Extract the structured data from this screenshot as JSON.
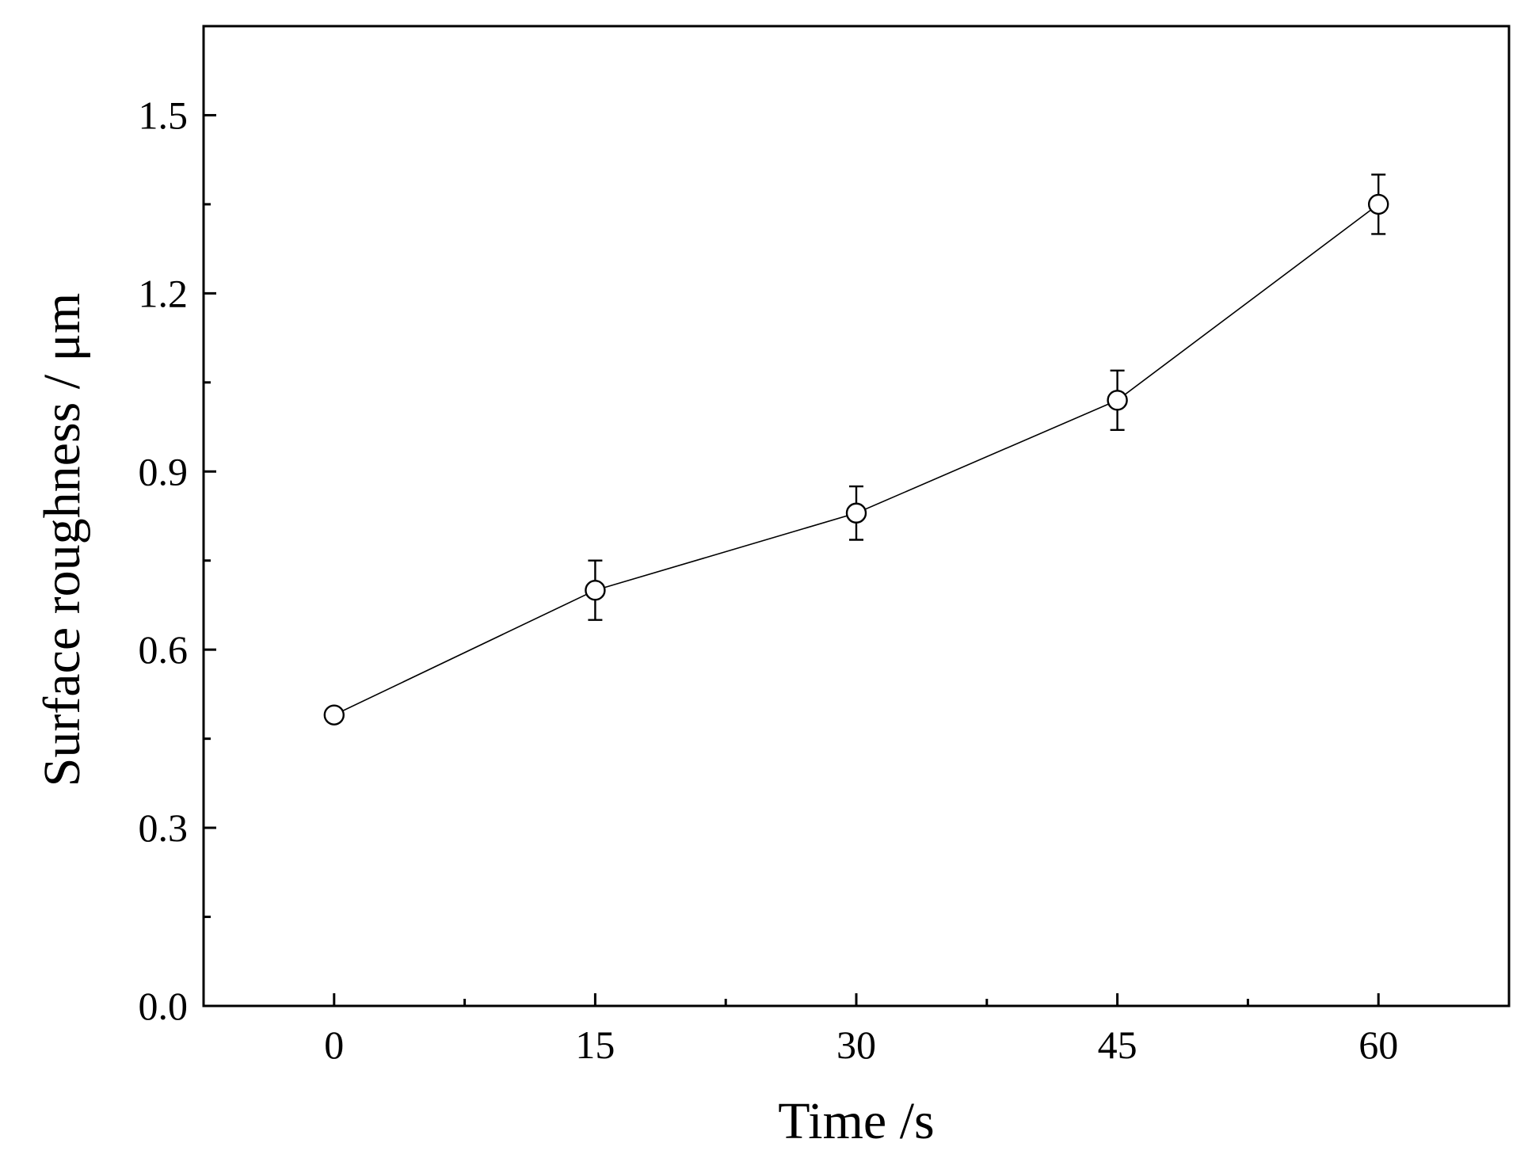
{
  "chart_data": {
    "type": "line",
    "title": "",
    "xlabel": "Time /s",
    "ylabel": "Surface roughness / μm",
    "x": [
      0,
      15,
      30,
      45,
      60
    ],
    "x_tick_labels": [
      "0",
      "15",
      "30",
      "45",
      "60"
    ],
    "xlim": [
      -7.5,
      67.5
    ],
    "y_tick_values": [
      0.0,
      0.3,
      0.6,
      0.9,
      1.2,
      1.5
    ],
    "y_tick_labels": [
      "0.0",
      "0.3",
      "0.6",
      "0.9",
      "1.2",
      "1.5"
    ],
    "ylim": [
      0,
      1.65
    ],
    "grid": false,
    "series": [
      {
        "values": [
          0.49,
          0.7,
          0.83,
          1.02,
          1.35
        ],
        "errors": [
          0.01,
          0.05,
          0.045,
          0.05,
          0.05
        ],
        "marker": "open-circle",
        "color": "#000000"
      }
    ]
  }
}
